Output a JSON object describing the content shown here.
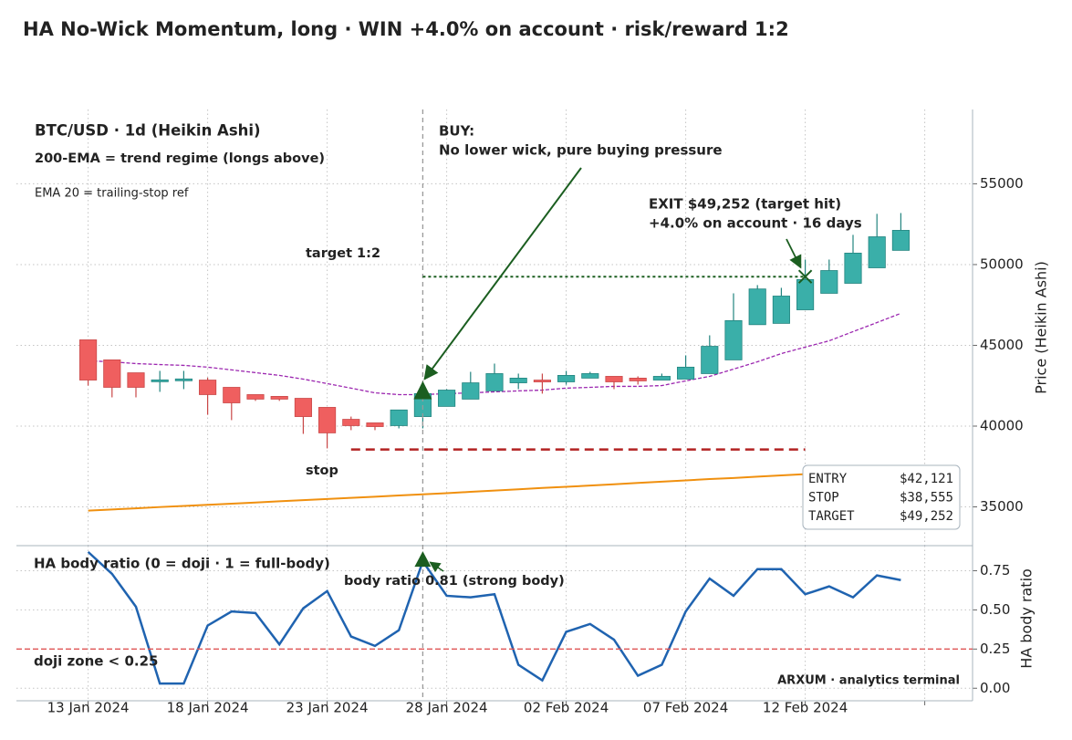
{
  "chart_data": [
    {
      "type": "candlestick",
      "title": "HA No-Wick Momentum, long · WIN +4.0% on account · risk/reward 1:2",
      "subtitle": "BTC/USD · 1d (Heikin Ashi)",
      "ylabel": "Price (Heikin Ashi)",
      "x": [
        "2024-01-13",
        "2024-01-14",
        "2024-01-15",
        "2024-01-16",
        "2024-01-17",
        "2024-01-18",
        "2024-01-19",
        "2024-01-20",
        "2024-01-21",
        "2024-01-22",
        "2024-01-23",
        "2024-01-24",
        "2024-01-25",
        "2024-01-26",
        "2024-01-27",
        "2024-01-28",
        "2024-01-29",
        "2024-01-30",
        "2024-01-31",
        "2024-02-01",
        "2024-02-02",
        "2024-02-03",
        "2024-02-04",
        "2024-02-05",
        "2024-02-06",
        "2024-02-07",
        "2024-02-08",
        "2024-02-09",
        "2024-02-10",
        "2024-02-11",
        "2024-02-12",
        "2024-02-13",
        "2024-02-14",
        "2024-02-15",
        "2024-02-16"
      ],
      "open": [
        45340,
        44100,
        43300,
        42820,
        42880,
        42850,
        42400,
        41950,
        41840,
        41720,
        41160,
        40420,
        40200,
        40030,
        40590,
        41220,
        41670,
        42180,
        42680,
        42850,
        42740,
        42970,
        43080,
        42970,
        42850,
        42910,
        43250,
        44100,
        46280,
        46360,
        47200,
        48220,
        48840,
        49800,
        50880
      ],
      "high": [
        45340,
        44100,
        43300,
        43420,
        43420,
        43000,
        42400,
        41950,
        41840,
        41720,
        41160,
        40590,
        40200,
        41000,
        42290,
        42290,
        43360,
        43870,
        43250,
        43250,
        43420,
        43360,
        43080,
        43080,
        43250,
        44380,
        45620,
        48220,
        48730,
        48560,
        50310,
        50310,
        51840,
        53140,
        53190
      ],
      "low": [
        42510,
        41780,
        41780,
        42120,
        42290,
        40700,
        40370,
        41560,
        41560,
        39520,
        38620,
        39750,
        39750,
        39860,
        39860,
        41220,
        41670,
        42180,
        42290,
        42010,
        42570,
        42970,
        42290,
        42570,
        42850,
        42910,
        43250,
        44100,
        46280,
        46360,
        47200,
        48220,
        48840,
        49800,
        50880
      ],
      "close": [
        42850,
        42400,
        42400,
        42860,
        42920,
        41950,
        41440,
        41670,
        41670,
        40590,
        39580,
        40030,
        39970,
        41000,
        42010,
        42230,
        42680,
        43250,
        42970,
        42740,
        43140,
        43250,
        42740,
        42800,
        43080,
        43650,
        44940,
        46530,
        48490,
        48050,
        49070,
        49630,
        50710,
        51720,
        52120
      ],
      "up_color": "#3aafa9",
      "down_color": "#ef5f5f",
      "overlays": [
        {
          "name": "200-EMA = trend regime (longs above)",
          "color": "#f0900f",
          "values": [
            34770,
            34840,
            34910,
            34990,
            35060,
            35130,
            35200,
            35270,
            35350,
            35420,
            35490,
            35560,
            35630,
            35710,
            35780,
            35850,
            35930,
            36010,
            36090,
            36170,
            36240,
            36320,
            36400,
            36480,
            36560,
            36640,
            36720,
            36790,
            36870,
            36950,
            37030,
            37110,
            37190,
            37270,
            37350
          ]
        },
        {
          "name": "EMA 20 = trailing-stop ref",
          "color": "#9c27b0",
          "values": [
            44040,
            43980,
            43870,
            43810,
            43760,
            43650,
            43480,
            43310,
            43140,
            42910,
            42630,
            42350,
            42060,
            41950,
            41950,
            42010,
            42060,
            42120,
            42180,
            42230,
            42350,
            42400,
            42460,
            42460,
            42510,
            42800,
            43080,
            43530,
            43980,
            44490,
            44890,
            45280,
            45850,
            46410,
            46980
          ]
        }
      ],
      "ylim": [
        32600,
        59600
      ],
      "yticks": [
        35000,
        40000,
        45000,
        50000,
        55000
      ],
      "grid": true,
      "trade": {
        "entry_date": "2024-01-27",
        "exit_date": "2024-02-12",
        "stop_line_x": [
          "2024-01-24",
          "2024-02-12"
        ],
        "rows": [
          {
            "name": "ENTRY",
            "value": 42121,
            "label": "$42,121"
          },
          {
            "name": "STOP",
            "value": 38555,
            "label": "$38,555"
          },
          {
            "name": "TARGET",
            "value": 49252,
            "label": "$49,252"
          }
        ]
      },
      "labels": {
        "buy": [
          "BUY:",
          "No lower wick, pure buying pressure"
        ],
        "exit": [
          "EXIT $49,252 (target hit)",
          "+4.0% on account  ·  16 days"
        ],
        "target": "target 1:2",
        "stop": "stop"
      }
    },
    {
      "type": "line",
      "ylabel": "HA body ratio",
      "x": [
        "2024-01-13",
        "2024-01-14",
        "2024-01-15",
        "2024-01-16",
        "2024-01-17",
        "2024-01-18",
        "2024-01-19",
        "2024-01-20",
        "2024-01-21",
        "2024-01-22",
        "2024-01-23",
        "2024-01-24",
        "2024-01-25",
        "2024-01-26",
        "2024-01-27",
        "2024-01-28",
        "2024-01-29",
        "2024-01-30",
        "2024-01-31",
        "2024-02-01",
        "2024-02-02",
        "2024-02-03",
        "2024-02-04",
        "2024-02-05",
        "2024-02-06",
        "2024-02-07",
        "2024-02-08",
        "2024-02-09",
        "2024-02-10",
        "2024-02-11",
        "2024-02-12",
        "2024-02-13",
        "2024-02-14",
        "2024-02-15",
        "2024-02-16"
      ],
      "series": [
        {
          "name": "HA body ratio (0 = doji · 1 = full-body)",
          "color": "#1f63b0",
          "values": [
            0.87,
            0.73,
            0.52,
            0.03,
            0.03,
            0.4,
            0.49,
            0.48,
            0.28,
            0.51,
            0.62,
            0.33,
            0.27,
            0.37,
            0.81,
            0.59,
            0.58,
            0.6,
            0.15,
            0.05,
            0.36,
            0.41,
            0.31,
            0.08,
            0.15,
            0.49,
            0.7,
            0.59,
            0.76,
            0.76,
            0.6,
            0.65,
            0.58,
            0.72,
            0.69
          ]
        }
      ],
      "threshold": {
        "name": "doji zone < 0.25",
        "value": 0.25,
        "color": "#e05555"
      },
      "annotation": "body ratio 0.81 (strong body)",
      "ylim": [
        -0.08,
        0.91
      ],
      "yticks": [
        {
          "value": 0,
          "label": "0.00"
        },
        0.25,
        {
          "value": 0.5,
          "label": "0.50"
        },
        0.75
      ],
      "xlim": [
        "2024-01-10",
        "2024-02-19"
      ],
      "xticks": [
        {
          "value": "2024-01-13",
          "label": "13 Jan 2024"
        },
        {
          "value": "2024-01-18",
          "label": "18 Jan 2024"
        },
        {
          "value": "2024-01-23",
          "label": "23 Jan 2024"
        },
        {
          "value": "2024-01-28",
          "label": "28 Jan 2024"
        },
        {
          "value": "2024-02-02",
          "label": "02 Feb 2024"
        },
        {
          "value": "2024-02-07",
          "label": "07 Feb 2024"
        },
        {
          "value": "2024-02-12",
          "label": "12 Feb 2024"
        },
        {
          "value": "2024-02-17",
          "label": null
        }
      ],
      "grid": true
    }
  ],
  "footer": "ARXUM · analytics terminal"
}
